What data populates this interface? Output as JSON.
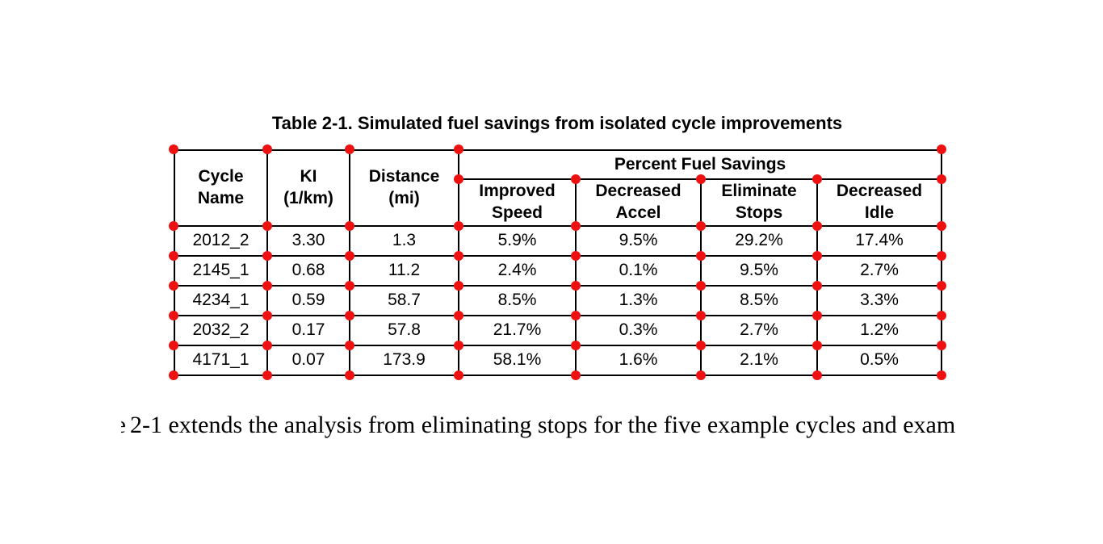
{
  "title": "Table 2-1. Simulated fuel savings from isolated cycle improvements",
  "table": {
    "headers": {
      "cycle_name": "Cycle\nName",
      "ki": "KI\n(1/km)",
      "distance": "Distance\n(mi)",
      "group": "Percent Fuel Savings",
      "improved_speed": "Improved\nSpeed",
      "decreased_accel": "Decreased\nAccel",
      "eliminate_stops": "Eliminate\nStops",
      "decreased_idle": "Decreased\nIdle"
    },
    "rows": [
      [
        "2012_2",
        "3.30",
        "1.3",
        "5.9%",
        "9.5%",
        "29.2%",
        "17.4%"
      ],
      [
        "2145_1",
        "0.68",
        "11.2",
        "2.4%",
        "0.1%",
        "9.5%",
        "2.7%"
      ],
      [
        "4234_1",
        "0.59",
        "58.7",
        "8.5%",
        "1.3%",
        "8.5%",
        "3.3%"
      ],
      [
        "2032_2",
        "0.17",
        "57.8",
        "21.7%",
        "0.3%",
        "2.7%",
        "1.2%"
      ],
      [
        "4171_1",
        "0.07",
        "173.9",
        "58.1%",
        "1.6%",
        "2.1%",
        "0.5%"
      ]
    ]
  },
  "body_text": {
    "clipped_fragment": "e",
    "line": "2-1 extends the analysis from eliminating stops for the five example cycles and exam"
  },
  "markers": {
    "color": "#ee1111"
  },
  "colors": {
    "background": "#ffffff",
    "table_border": "#000000",
    "text": "#000000"
  }
}
